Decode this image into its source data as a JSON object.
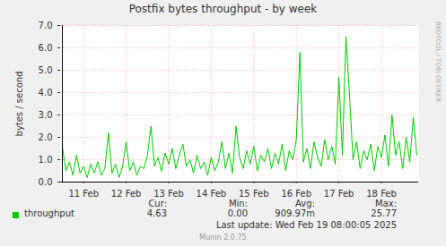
{
  "chart_data": {
    "type": "line",
    "title": "Postfix bytes throughput - by week",
    "y_label": "bytes / second",
    "categories": [
      null,
      null,
      null,
      null,
      null,
      null,
      "11 Feb",
      null,
      null,
      null,
      null,
      null,
      null,
      null,
      null,
      null,
      null,
      null,
      "12 Feb",
      null,
      null,
      null,
      null,
      null,
      null,
      null,
      null,
      null,
      null,
      null,
      "13 Feb",
      null,
      null,
      null,
      null,
      null,
      null,
      null,
      null,
      null,
      null,
      null,
      "14 Feb",
      null,
      null,
      null,
      null,
      null,
      null,
      null,
      null,
      null,
      null,
      null,
      "15 Feb",
      null,
      null,
      null,
      null,
      null,
      null,
      null,
      null,
      null,
      null,
      null,
      "16 Feb",
      null,
      null,
      null,
      null,
      null,
      null,
      null,
      null,
      null,
      null,
      null,
      "17 Feb",
      null,
      null,
      null,
      null,
      null,
      null,
      null,
      null,
      null,
      null,
      null,
      "18 Feb",
      null,
      null,
      null,
      null,
      null,
      null,
      null,
      null,
      null,
      null
    ],
    "series": [
      {
        "name": "throughput",
        "color": "#00cc00",
        "values": [
          1.6,
          0.5,
          0.9,
          0.3,
          1.2,
          0.4,
          0.7,
          0.2,
          0.8,
          0.4,
          0.9,
          0.3,
          0.6,
          2.2,
          0.4,
          0.8,
          0.2,
          0.7,
          1.8,
          0.5,
          0.9,
          0.3,
          0.7,
          0.6,
          1.2,
          2.5,
          0.7,
          1.1,
          0.5,
          1.3,
          0.8,
          1.5,
          0.6,
          1.2,
          1.7,
          0.7,
          1.0,
          0.4,
          1.2,
          0.6,
          0.9,
          0.3,
          1.1,
          0.5,
          0.9,
          1.8,
          0.6,
          1.3,
          0.4,
          2.5,
          1.1,
          0.6,
          1.4,
          0.8,
          1.6,
          0.5,
          1.2,
          0.9,
          1.5,
          0.6,
          1.3,
          0.8,
          1.7,
          0.5,
          1.4,
          1.0,
          1.9,
          5.8,
          0.9,
          1.5,
          0.6,
          1.8,
          1.1,
          0.7,
          1.9,
          1.0,
          1.6,
          0.8,
          4.7,
          1.2,
          6.5,
          3.9,
          1.0,
          1.8,
          0.6,
          1.4,
          1.0,
          1.7,
          0.5,
          1.6,
          1.1,
          2.1,
          0.7,
          3.0,
          1.2,
          1.8,
          0.6,
          2.0,
          0.9,
          2.9,
          1.2
        ]
      }
    ],
    "ylim": [
      0,
      7
    ],
    "yticks": [
      {
        "value": 0,
        "label": "0.0"
      },
      {
        "value": 1,
        "label": "1.0"
      },
      {
        "value": 2,
        "label": "2.0"
      },
      {
        "value": 3,
        "label": "3.0"
      },
      {
        "value": 4,
        "label": "4.0"
      },
      {
        "value": 5,
        "label": "5.0"
      },
      {
        "value": 6,
        "label": "6.0"
      },
      {
        "value": 7,
        "label": "7.0"
      }
    ],
    "grid": true,
    "legend": "bottom",
    "stats": {
      "headers": [
        "Cur:",
        "Min:",
        "Avg:",
        "Max:"
      ],
      "values": [
        "4.63",
        "0.00",
        "909.97m",
        "25.77"
      ]
    },
    "last_update": "Last update: Wed Feb 19 08:00:05 2025",
    "footer": "Munin 2.0.75",
    "watermark": "RRDTOOL / TOBI OETIKER"
  }
}
